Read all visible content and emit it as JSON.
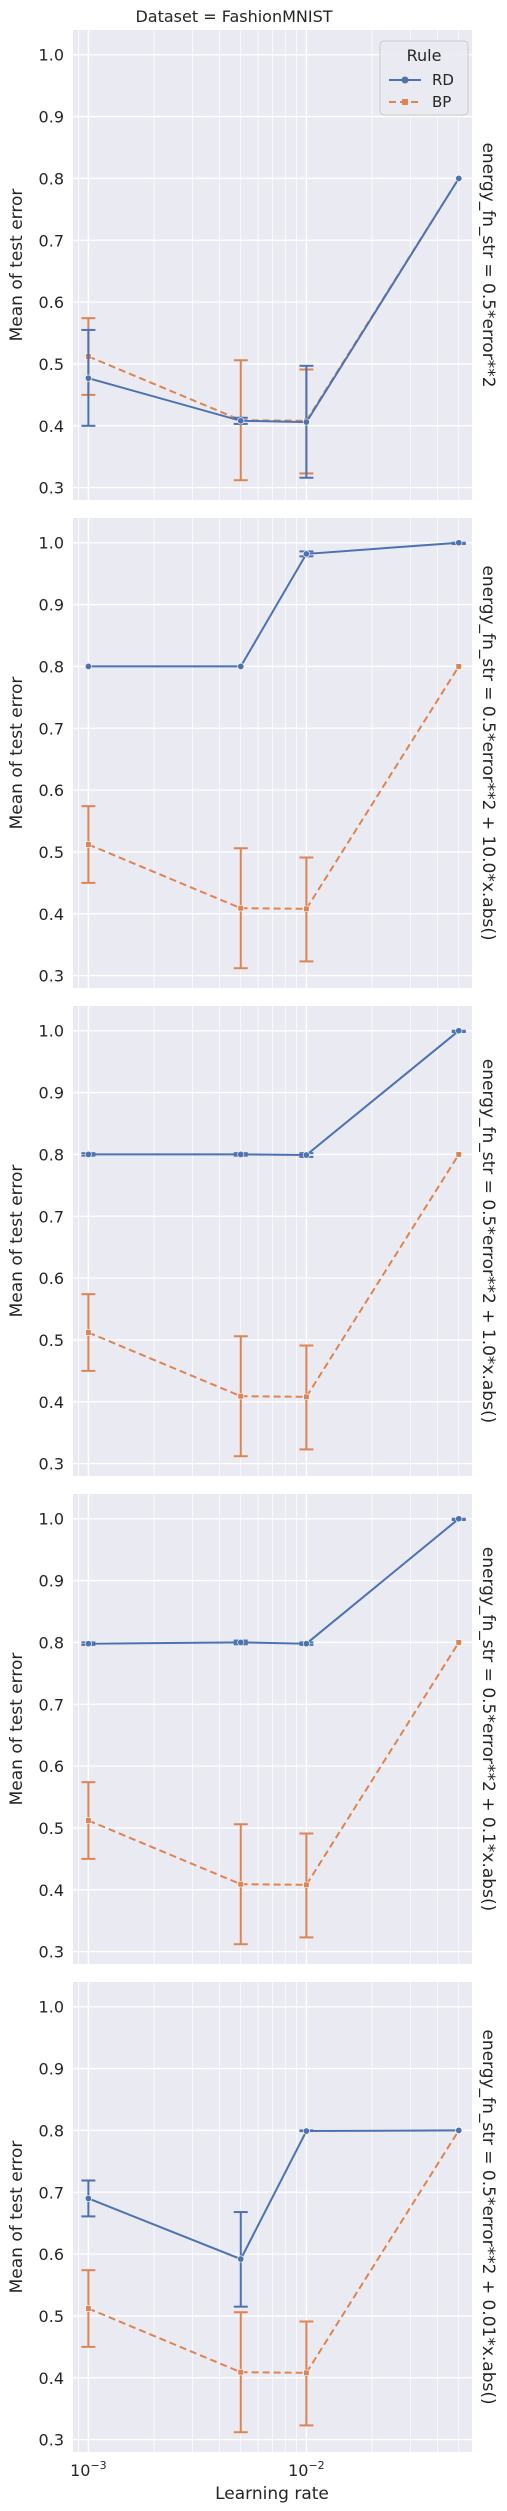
{
  "figure": {
    "top_title": "Dataset = FashionMNIST",
    "xlabel": "Learning rate",
    "x_tick_labels": [
      "10^-3",
      "10^-2"
    ]
  },
  "chart_data": [
    {
      "type": "line",
      "facet_label": "energy_fn_str = 0.5*error**2",
      "ylabel": "Mean of test error",
      "xscale": "log",
      "x": [
        0.001,
        0.005,
        0.01,
        0.05
      ],
      "ylim": [
        0.28,
        1.04
      ],
      "yticks": [
        0.3,
        0.4,
        0.5,
        0.6,
        0.7,
        0.8,
        0.9,
        1.0
      ],
      "grid": true,
      "series": [
        {
          "name": "RD",
          "values": [
            0.477,
            0.408,
            0.406,
            0.8
          ],
          "err_low": [
            0.4,
            0.403,
            0.316,
            0.8
          ],
          "err_high": [
            0.555,
            0.413,
            0.497,
            0.8
          ]
        },
        {
          "name": "BP",
          "values": [
            0.512,
            0.409,
            0.408,
            0.8
          ],
          "err_low": [
            0.45,
            0.312,
            0.323,
            0.8
          ],
          "err_high": [
            0.574,
            0.506,
            0.491,
            0.8
          ]
        }
      ]
    },
    {
      "type": "line",
      "facet_label": "energy_fn_str = 0.5*error**2 + 10.0*x.abs()",
      "ylabel": "Mean of test error",
      "xscale": "log",
      "x": [
        0.001,
        0.005,
        0.01,
        0.05
      ],
      "ylim": [
        0.28,
        1.04
      ],
      "yticks": [
        0.3,
        0.4,
        0.5,
        0.6,
        0.7,
        0.8,
        0.9,
        1.0
      ],
      "grid": true,
      "series": [
        {
          "name": "RD",
          "values": [
            0.8,
            0.8,
            0.982,
            1.0
          ],
          "err_low": [
            0.8,
            0.8,
            0.978,
            0.998
          ],
          "err_high": [
            0.8,
            0.8,
            0.986,
            1.0
          ]
        },
        {
          "name": "BP",
          "values": [
            0.512,
            0.409,
            0.408,
            0.8
          ],
          "err_low": [
            0.45,
            0.312,
            0.323,
            0.8
          ],
          "err_high": [
            0.574,
            0.506,
            0.491,
            0.8
          ]
        }
      ]
    },
    {
      "type": "line",
      "facet_label": "energy_fn_str = 0.5*error**2 + 1.0*x.abs()",
      "ylabel": "Mean of test error",
      "xscale": "log",
      "x": [
        0.001,
        0.005,
        0.01,
        0.05
      ],
      "ylim": [
        0.28,
        1.04
      ],
      "yticks": [
        0.3,
        0.4,
        0.5,
        0.6,
        0.7,
        0.8,
        0.9,
        1.0
      ],
      "grid": true,
      "series": [
        {
          "name": "RD",
          "values": [
            0.8,
            0.8,
            0.799,
            1.0
          ],
          "err_low": [
            0.798,
            0.798,
            0.796,
            0.998
          ],
          "err_high": [
            0.802,
            0.802,
            0.802,
            1.0
          ]
        },
        {
          "name": "BP",
          "values": [
            0.512,
            0.409,
            0.408,
            0.8
          ],
          "err_low": [
            0.45,
            0.312,
            0.323,
            0.8
          ],
          "err_high": [
            0.574,
            0.506,
            0.491,
            0.8
          ]
        }
      ]
    },
    {
      "type": "line",
      "facet_label": "energy_fn_str = 0.5*error**2 + 0.1*x.abs()",
      "ylabel": "Mean of test error",
      "xscale": "log",
      "x": [
        0.001,
        0.005,
        0.01,
        0.05
      ],
      "ylim": [
        0.28,
        1.04
      ],
      "yticks": [
        0.3,
        0.4,
        0.5,
        0.6,
        0.7,
        0.8,
        0.9,
        1.0
      ],
      "grid": true,
      "series": [
        {
          "name": "RD",
          "values": [
            0.798,
            0.8,
            0.798,
            1.0
          ],
          "err_low": [
            0.796,
            0.797,
            0.796,
            0.998
          ],
          "err_high": [
            0.8,
            0.803,
            0.8,
            1.0
          ]
        },
        {
          "name": "BP",
          "values": [
            0.512,
            0.409,
            0.408,
            0.8
          ],
          "err_low": [
            0.45,
            0.312,
            0.323,
            0.8
          ],
          "err_high": [
            0.574,
            0.506,
            0.491,
            0.8
          ]
        }
      ]
    },
    {
      "type": "line",
      "facet_label": "energy_fn_str = 0.5*error**2 + 0.01*x.abs()",
      "ylabel": "Mean of test error",
      "xscale": "log",
      "x": [
        0.001,
        0.005,
        0.01,
        0.05
      ],
      "ylim": [
        0.28,
        1.04
      ],
      "yticks": [
        0.3,
        0.4,
        0.5,
        0.6,
        0.7,
        0.8,
        0.9,
        1.0
      ],
      "grid": true,
      "series": [
        {
          "name": "RD",
          "values": [
            0.69,
            0.592,
            0.799,
            0.8
          ],
          "err_low": [
            0.661,
            0.515,
            0.799,
            0.8
          ],
          "err_high": [
            0.719,
            0.668,
            0.8,
            0.8
          ]
        },
        {
          "name": "BP",
          "values": [
            0.512,
            0.409,
            0.408,
            0.8
          ],
          "err_low": [
            0.45,
            0.312,
            0.323,
            0.8
          ],
          "err_high": [
            0.574,
            0.506,
            0.491,
            0.8
          ]
        }
      ]
    }
  ],
  "legend": {
    "title": "Rule",
    "placement": "top-right of first panel",
    "entries": [
      {
        "label": "RD",
        "color": "#4c72b0",
        "marker": "circle",
        "linestyle": "solid"
      },
      {
        "label": "BP",
        "color": "#dd8452",
        "marker": "square",
        "linestyle": "dashed"
      }
    ]
  },
  "style": {
    "panel_background": "#eaeaf2",
    "grid_color": "#ffffff",
    "rd_color": "#4c72b0",
    "bp_color": "#dd8452"
  }
}
